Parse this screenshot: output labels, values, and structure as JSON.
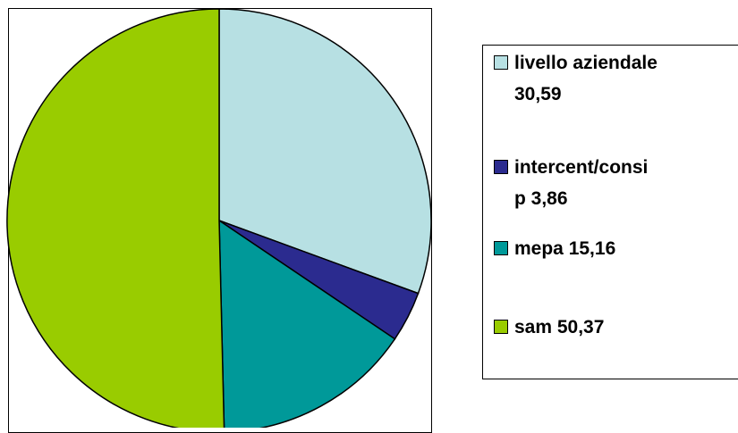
{
  "chart_data": {
    "type": "pie",
    "title": "",
    "slices": [
      {
        "label": "livello aziendale",
        "value": 30.59,
        "legend_text": "livello aziendale\n30,59",
        "color": "#b7e0e3"
      },
      {
        "label": "intercent/consip",
        "value": 3.86,
        "legend_text": "intercent/consi\np 3,86",
        "color": "#2b2b8f"
      },
      {
        "label": "mepa",
        "value": 15.16,
        "legend_text": "mepa 15,16",
        "color": "#009999"
      },
      {
        "label": "sam",
        "value": 50.37,
        "legend_text": "sam 50,37",
        "color": "#99cc00"
      }
    ],
    "start_angle_deg": 0,
    "direction": "clockwise",
    "legend_position": "right"
  }
}
